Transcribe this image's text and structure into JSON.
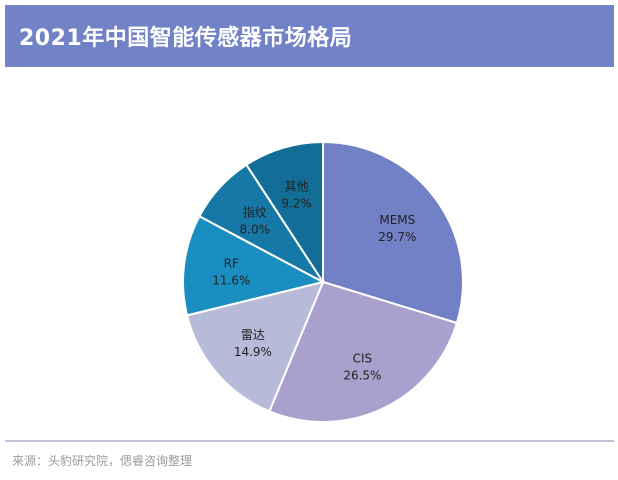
{
  "chart_data": {
    "type": "pie",
    "title": "2021年中国智能传感器市场格局",
    "categories": [
      "MEMS",
      "CIS",
      "雷达",
      "RF",
      "指纹",
      "其他"
    ],
    "values": [
      29.7,
      26.5,
      14.9,
      11.6,
      8.0,
      9.2
    ],
    "value_labels": [
      "29.7%",
      "26.5%",
      "14.9%",
      "11.6%",
      "8.0%",
      "9.2%"
    ],
    "colors": [
      "#7280C6",
      "#A9A0CE",
      "#B8BAD9",
      "#1A8EC0",
      "#1678A6",
      "#136E97"
    ],
    "legend": "none"
  },
  "header": {
    "bg_color": "#7282C6"
  },
  "footer": {
    "source": "来源：头豹研究院，偲睿咨询整理"
  }
}
